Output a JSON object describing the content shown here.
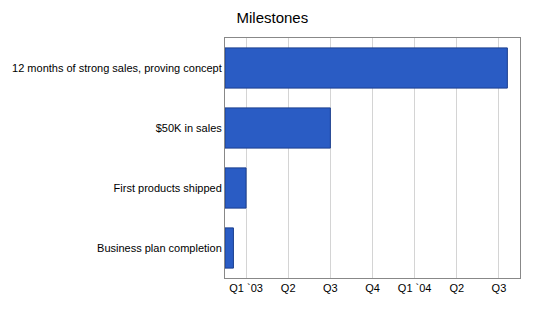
{
  "chart_data": {
    "type": "bar",
    "title": "Milestones",
    "orientation": "horizontal",
    "categories": [
      "Business plan completion",
      "First products shipped",
      "$50K in sales",
      "12 months of strong sales, proving concept"
    ],
    "values": [
      0.2,
      0.5,
      2.5,
      6.7
    ],
    "color": "#2a5cc4",
    "xlim": [
      0,
      7
    ],
    "xticks": [
      {
        "value": 0.5,
        "label": "Q1 `03"
      },
      {
        "value": 1.5,
        "label": "Q2"
      },
      {
        "value": 2.5,
        "label": "Q3"
      },
      {
        "value": 3.5,
        "label": "Q4"
      },
      {
        "value": 4.5,
        "label": "Q1 `04"
      },
      {
        "value": 5.5,
        "label": "Q2"
      },
      {
        "value": 6.5,
        "label": "Q3"
      }
    ],
    "grid": true
  }
}
